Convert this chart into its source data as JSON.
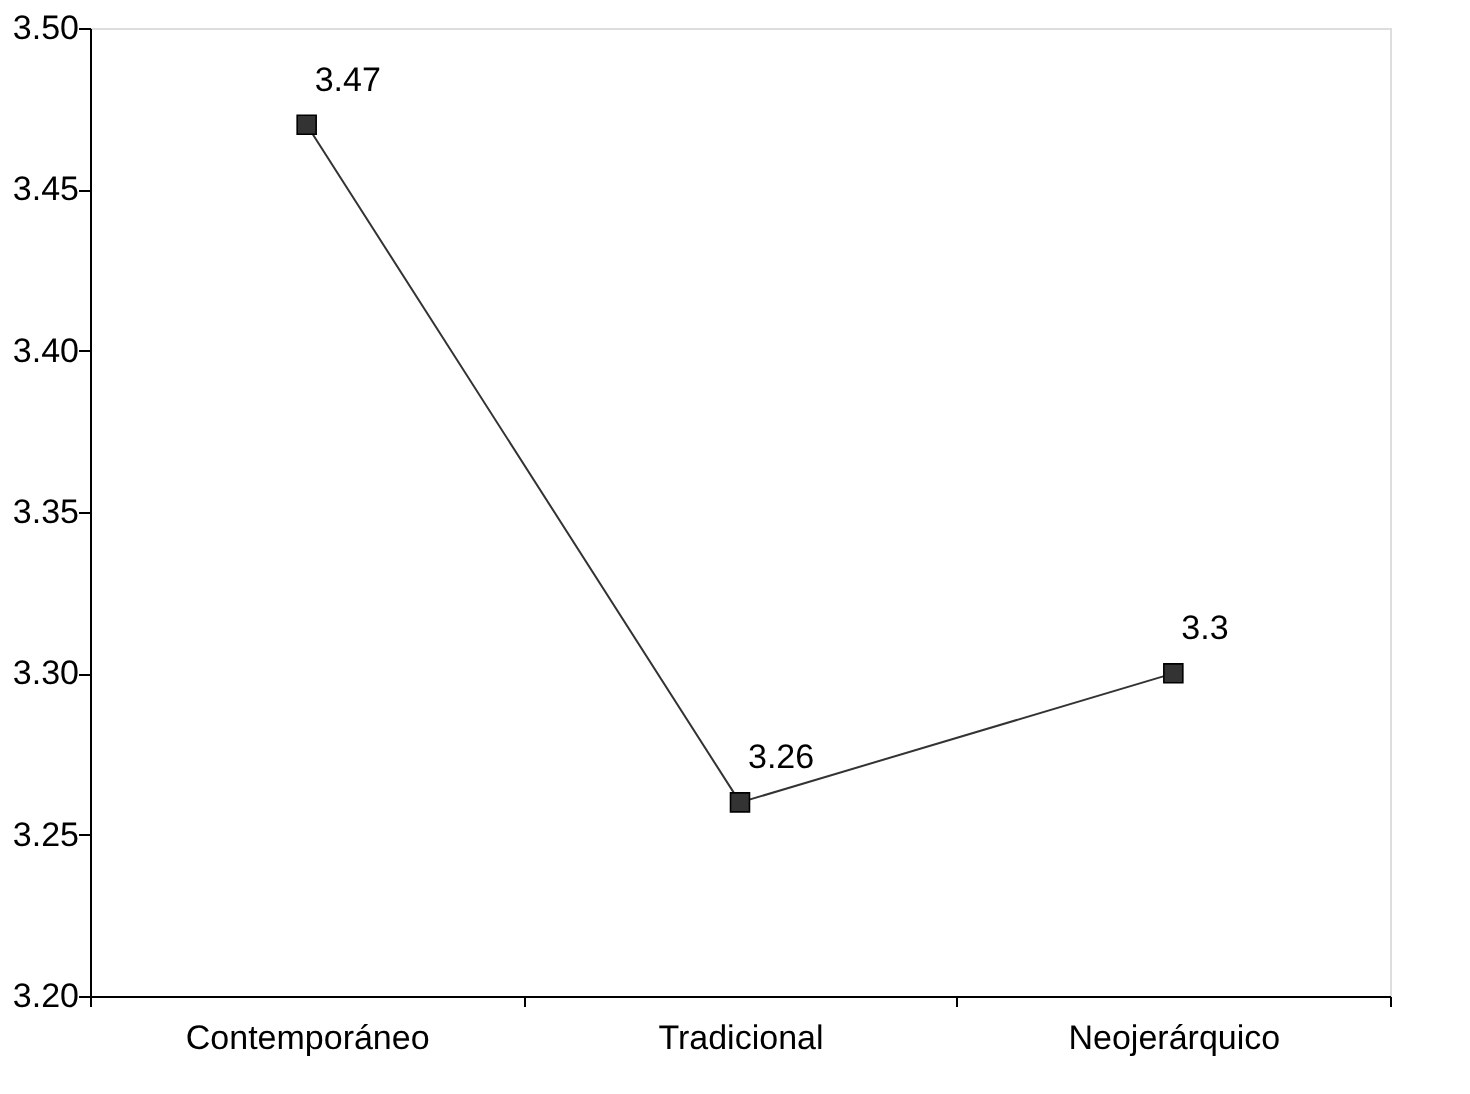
{
  "chart_data": {
    "type": "line",
    "categories": [
      "Contemporáneo",
      "Tradicional",
      "Neojerárquico"
    ],
    "series": [
      {
        "color": "#333333",
        "values": [
          3.47,
          3.26,
          3.3
        ]
      }
    ],
    "ylim": [
      3.2,
      3.5
    ],
    "yticks": [
      {
        "value": 3.2,
        "label": "3.20"
      },
      {
        "value": 3.25,
        "label": "3.25"
      },
      {
        "value": 3.3,
        "label": "3.30"
      },
      {
        "value": 3.35,
        "label": "3.35"
      },
      {
        "value": 3.4,
        "label": "3.40"
      },
      {
        "value": 3.45,
        "label": "3.45"
      },
      {
        "value": 3.5,
        "label": "3.50"
      }
    ],
    "data_labels": true,
    "marker": "square",
    "line_style": "solid",
    "grid": false
  }
}
